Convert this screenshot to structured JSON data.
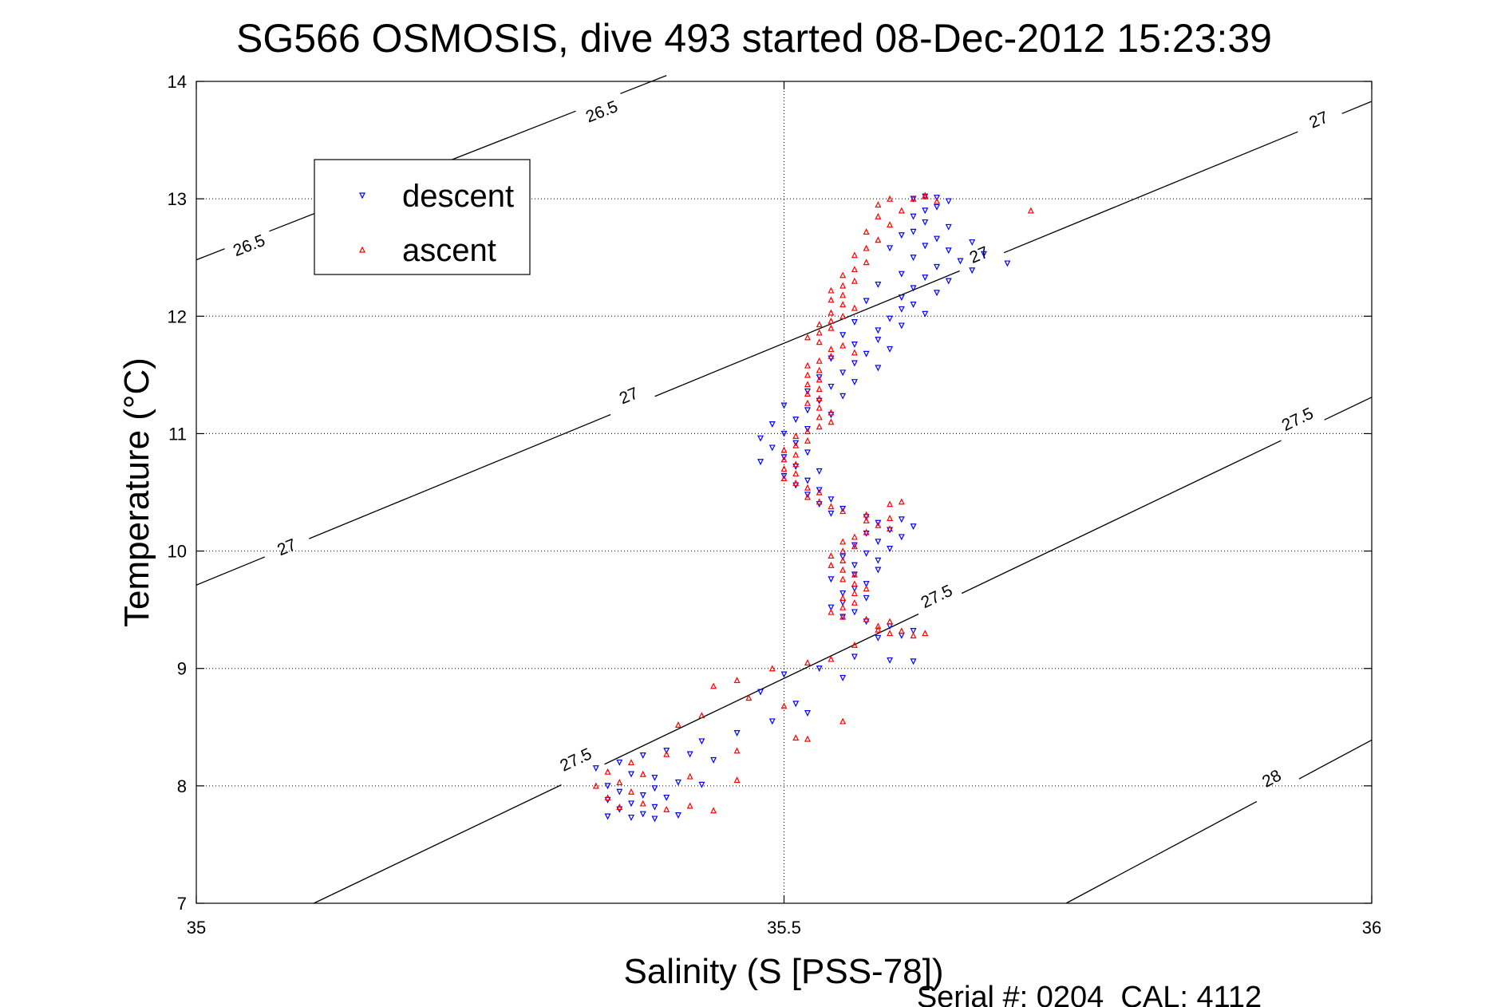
{
  "chart_data": {
    "type": "scatter",
    "title": "SG566 OSMOSIS, dive 493 started 08-Dec-2012 15:23:39",
    "xlabel": "Salinity (S [PSS-78])",
    "ylabel": "Temperature (°C)",
    "xlim": [
      35,
      36
    ],
    "ylim": [
      7,
      14
    ],
    "x_ticks": [
      "35",
      "35.5",
      "36"
    ],
    "y_ticks": [
      "7",
      "8",
      "9",
      "10",
      "11",
      "12",
      "13",
      "14"
    ],
    "grid": "dotted",
    "legend_position": "top-left",
    "footer": "Serial #: 0204  CAL: 4112",
    "contours": [
      {
        "label": "26.5",
        "points": [
          [
            35.0,
            12.48
          ],
          [
            35.4,
            14.05
          ]
        ],
        "label_at": [
          [
            35.045,
            12.6
          ],
          [
            35.345,
            13.74
          ]
        ]
      },
      {
        "label": "27",
        "points": [
          [
            35.0,
            9.71
          ],
          [
            36.0,
            13.83
          ]
        ],
        "label_at": [
          [
            35.077,
            10.03
          ],
          [
            35.368,
            11.32
          ],
          [
            35.666,
            12.52
          ],
          [
            35.955,
            13.67
          ]
        ]
      },
      {
        "label": "27.5",
        "points": [
          [
            35.1,
            7.0
          ],
          [
            36.0,
            11.31
          ]
        ],
        "label_at": [
          [
            35.323,
            8.22
          ],
          [
            35.63,
            9.61
          ],
          [
            35.937,
            11.12
          ]
        ]
      },
      {
        "label": "28",
        "points": [
          [
            35.74,
            7.0
          ],
          [
            36.0,
            8.39
          ]
        ],
        "label_at": [
          [
            35.915,
            8.06
          ]
        ]
      }
    ],
    "series": [
      {
        "name": "descent",
        "color": "#0000ff",
        "marker": "triangle-down",
        "points": [
          [
            35.62,
            13.02
          ],
          [
            35.63,
            13.01
          ],
          [
            35.61,
            13.0
          ],
          [
            35.64,
            12.98
          ],
          [
            35.63,
            12.93
          ],
          [
            35.62,
            12.9
          ],
          [
            35.61,
            12.85
          ],
          [
            35.62,
            12.8
          ],
          [
            35.64,
            12.76
          ],
          [
            35.61,
            12.72
          ],
          [
            35.6,
            12.69
          ],
          [
            35.63,
            12.66
          ],
          [
            35.66,
            12.63
          ],
          [
            35.62,
            12.6
          ],
          [
            35.59,
            12.58
          ],
          [
            35.64,
            12.56
          ],
          [
            35.67,
            12.53
          ],
          [
            35.61,
            12.5
          ],
          [
            35.65,
            12.47
          ],
          [
            35.69,
            12.45
          ],
          [
            35.63,
            12.42
          ],
          [
            35.66,
            12.39
          ],
          [
            35.6,
            12.36
          ],
          [
            35.62,
            12.33
          ],
          [
            35.64,
            12.3
          ],
          [
            35.58,
            12.27
          ],
          [
            35.61,
            12.24
          ],
          [
            35.63,
            12.2
          ],
          [
            35.6,
            12.16
          ],
          [
            35.57,
            12.13
          ],
          [
            35.61,
            12.1
          ],
          [
            35.6,
            12.06
          ],
          [
            35.62,
            12.02
          ],
          [
            35.59,
            11.98
          ],
          [
            35.56,
            11.95
          ],
          [
            35.6,
            11.92
          ],
          [
            35.58,
            11.88
          ],
          [
            35.55,
            11.84
          ],
          [
            35.58,
            11.8
          ],
          [
            35.56,
            11.76
          ],
          [
            35.59,
            11.72
          ],
          [
            35.57,
            11.68
          ],
          [
            35.54,
            11.64
          ],
          [
            35.56,
            11.6
          ],
          [
            35.58,
            11.56
          ],
          [
            35.55,
            11.52
          ],
          [
            35.53,
            11.48
          ],
          [
            35.56,
            11.44
          ],
          [
            35.54,
            11.4
          ],
          [
            35.52,
            11.36
          ],
          [
            35.55,
            11.32
          ],
          [
            35.53,
            11.28
          ],
          [
            35.5,
            11.24
          ],
          [
            35.52,
            11.2
          ],
          [
            35.54,
            11.16
          ],
          [
            35.51,
            11.12
          ],
          [
            35.49,
            11.08
          ],
          [
            35.52,
            11.04
          ],
          [
            35.5,
            11.0
          ],
          [
            35.48,
            10.96
          ],
          [
            35.51,
            10.92
          ],
          [
            35.49,
            10.88
          ],
          [
            35.52,
            10.84
          ],
          [
            35.5,
            10.8
          ],
          [
            35.48,
            10.76
          ],
          [
            35.51,
            10.72
          ],
          [
            35.53,
            10.68
          ],
          [
            35.5,
            10.64
          ],
          [
            35.52,
            10.6
          ],
          [
            35.51,
            10.56
          ],
          [
            35.53,
            10.52
          ],
          [
            35.52,
            10.48
          ],
          [
            35.54,
            10.44
          ],
          [
            35.53,
            10.4
          ],
          [
            35.55,
            10.36
          ],
          [
            35.54,
            10.32
          ],
          [
            35.57,
            10.29
          ],
          [
            35.6,
            10.27
          ],
          [
            35.58,
            10.24
          ],
          [
            35.61,
            10.21
          ],
          [
            35.59,
            10.18
          ],
          [
            35.57,
            10.15
          ],
          [
            35.6,
            10.12
          ],
          [
            35.58,
            10.08
          ],
          [
            35.56,
            10.05
          ],
          [
            35.59,
            10.02
          ],
          [
            35.57,
            9.98
          ],
          [
            35.55,
            9.95
          ],
          [
            35.58,
            9.92
          ],
          [
            35.56,
            9.88
          ],
          [
            35.58,
            9.84
          ],
          [
            35.56,
            9.8
          ],
          [
            35.54,
            9.76
          ],
          [
            35.57,
            9.72
          ],
          [
            35.56,
            9.68
          ],
          [
            35.55,
            9.64
          ],
          [
            35.57,
            9.6
          ],
          [
            35.55,
            9.56
          ],
          [
            35.54,
            9.52
          ],
          [
            35.56,
            9.48
          ],
          [
            35.55,
            9.44
          ],
          [
            35.57,
            9.4
          ],
          [
            35.59,
            9.36
          ],
          [
            35.61,
            9.32
          ],
          [
            35.6,
            9.28
          ],
          [
            35.58,
            9.26
          ],
          [
            35.56,
            9.1
          ],
          [
            35.59,
            9.07
          ],
          [
            35.61,
            9.06
          ],
          [
            35.53,
            9.0
          ],
          [
            35.5,
            8.95
          ],
          [
            35.55,
            8.92
          ],
          [
            35.48,
            8.8
          ],
          [
            35.51,
            8.7
          ],
          [
            35.52,
            8.62
          ],
          [
            35.49,
            8.55
          ],
          [
            35.46,
            8.45
          ],
          [
            35.43,
            8.38
          ],
          [
            35.4,
            8.3
          ],
          [
            35.38,
            8.26
          ],
          [
            35.42,
            8.27
          ],
          [
            35.44,
            8.22
          ],
          [
            35.36,
            8.2
          ],
          [
            35.34,
            8.15
          ],
          [
            35.37,
            8.1
          ],
          [
            35.39,
            8.07
          ],
          [
            35.41,
            8.03
          ],
          [
            35.43,
            8.01
          ],
          [
            35.35,
            8.0
          ],
          [
            35.39,
            7.98
          ],
          [
            35.36,
            7.95
          ],
          [
            35.38,
            7.92
          ],
          [
            35.4,
            7.9
          ],
          [
            35.35,
            7.88
          ],
          [
            35.37,
            7.85
          ],
          [
            35.39,
            7.82
          ],
          [
            35.36,
            7.8
          ],
          [
            35.38,
            7.76
          ],
          [
            35.35,
            7.74
          ],
          [
            35.37,
            7.73
          ],
          [
            35.39,
            7.72
          ],
          [
            35.41,
            7.75
          ]
        ]
      },
      {
        "name": "ascent",
        "color": "#ff0000",
        "marker": "triangle-up",
        "points": [
          [
            35.61,
            13.0
          ],
          [
            35.62,
            13.02
          ],
          [
            35.63,
            12.98
          ],
          [
            35.59,
            13.0
          ],
          [
            35.58,
            12.95
          ],
          [
            35.6,
            12.9
          ],
          [
            35.58,
            12.85
          ],
          [
            35.59,
            12.78
          ],
          [
            35.57,
            12.72
          ],
          [
            35.58,
            12.65
          ],
          [
            35.57,
            12.58
          ],
          [
            35.56,
            12.52
          ],
          [
            35.57,
            12.46
          ],
          [
            35.56,
            12.4
          ],
          [
            35.55,
            12.35
          ],
          [
            35.56,
            12.3
          ],
          [
            35.55,
            12.26
          ],
          [
            35.54,
            12.22
          ],
          [
            35.55,
            12.18
          ],
          [
            35.54,
            12.14
          ],
          [
            35.55,
            12.1
          ],
          [
            35.56,
            12.07
          ],
          [
            35.54,
            12.03
          ],
          [
            35.55,
            12.0
          ],
          [
            35.54,
            11.96
          ],
          [
            35.53,
            11.93
          ],
          [
            35.54,
            11.9
          ],
          [
            35.53,
            11.86
          ],
          [
            35.52,
            11.82
          ],
          [
            35.53,
            11.78
          ],
          [
            35.55,
            11.75
          ],
          [
            35.54,
            11.72
          ],
          [
            35.56,
            11.69
          ],
          [
            35.54,
            11.66
          ],
          [
            35.53,
            11.62
          ],
          [
            35.52,
            11.58
          ],
          [
            35.53,
            11.54
          ],
          [
            35.52,
            11.5
          ],
          [
            35.53,
            11.46
          ],
          [
            35.52,
            11.42
          ],
          [
            35.53,
            11.38
          ],
          [
            35.52,
            11.34
          ],
          [
            35.53,
            11.3
          ],
          [
            35.52,
            11.26
          ],
          [
            35.53,
            11.22
          ],
          [
            35.54,
            11.18
          ],
          [
            35.53,
            11.14
          ],
          [
            35.54,
            11.1
          ],
          [
            35.53,
            11.06
          ],
          [
            35.52,
            11.02
          ],
          [
            35.51,
            10.98
          ],
          [
            35.52,
            10.94
          ],
          [
            35.51,
            10.9
          ],
          [
            35.5,
            10.86
          ],
          [
            35.51,
            10.82
          ],
          [
            35.5,
            10.78
          ],
          [
            35.51,
            10.74
          ],
          [
            35.5,
            10.7
          ],
          [
            35.51,
            10.66
          ],
          [
            35.5,
            10.62
          ],
          [
            35.51,
            10.58
          ],
          [
            35.52,
            10.54
          ],
          [
            35.53,
            10.5
          ],
          [
            35.52,
            10.46
          ],
          [
            35.53,
            10.42
          ],
          [
            35.54,
            10.38
          ],
          [
            35.55,
            10.34
          ],
          [
            35.57,
            10.31
          ],
          [
            35.59,
            10.28
          ],
          [
            35.57,
            10.26
          ],
          [
            35.58,
            10.22
          ],
          [
            35.59,
            10.19
          ],
          [
            35.57,
            10.16
          ],
          [
            35.56,
            10.12
          ],
          [
            35.55,
            10.08
          ],
          [
            35.56,
            10.04
          ],
          [
            35.55,
            10.0
          ],
          [
            35.54,
            9.96
          ],
          [
            35.55,
            9.92
          ],
          [
            35.54,
            9.88
          ],
          [
            35.55,
            9.84
          ],
          [
            35.56,
            9.8
          ],
          [
            35.55,
            9.76
          ],
          [
            35.56,
            9.72
          ],
          [
            35.57,
            9.68
          ],
          [
            35.56,
            9.64
          ],
          [
            35.55,
            9.6
          ],
          [
            35.56,
            9.56
          ],
          [
            35.55,
            9.52
          ],
          [
            35.54,
            9.48
          ],
          [
            35.55,
            9.44
          ],
          [
            35.57,
            9.42
          ],
          [
            35.59,
            9.4
          ],
          [
            35.58,
            9.36
          ],
          [
            35.6,
            9.32
          ],
          [
            35.62,
            9.3
          ],
          [
            35.61,
            9.28
          ],
          [
            35.59,
            9.3
          ],
          [
            35.58,
            9.33
          ],
          [
            35.56,
            9.2
          ],
          [
            35.54,
            9.08
          ],
          [
            35.52,
            9.05
          ],
          [
            35.49,
            9.0
          ],
          [
            35.46,
            8.9
          ],
          [
            35.44,
            8.85
          ],
          [
            35.47,
            8.75
          ],
          [
            35.5,
            8.68
          ],
          [
            35.43,
            8.6
          ],
          [
            35.41,
            8.52
          ],
          [
            35.51,
            8.41
          ],
          [
            35.52,
            8.4
          ],
          [
            35.46,
            8.3
          ],
          [
            35.4,
            8.27
          ],
          [
            35.37,
            8.2
          ],
          [
            35.35,
            8.12
          ],
          [
            35.38,
            8.1
          ],
          [
            35.42,
            8.08
          ],
          [
            35.46,
            8.05
          ],
          [
            35.36,
            8.03
          ],
          [
            35.34,
            8.0
          ],
          [
            35.37,
            7.95
          ],
          [
            35.35,
            7.9
          ],
          [
            35.38,
            7.85
          ],
          [
            35.36,
            7.82
          ],
          [
            35.4,
            7.8
          ],
          [
            35.42,
            7.83
          ],
          [
            35.44,
            7.79
          ],
          [
            35.55,
            8.55
          ],
          [
            35.6,
            10.42
          ],
          [
            35.59,
            10.4
          ],
          [
            35.71,
            12.9
          ],
          [
            35.62,
            13.03
          ]
        ]
      }
    ]
  }
}
